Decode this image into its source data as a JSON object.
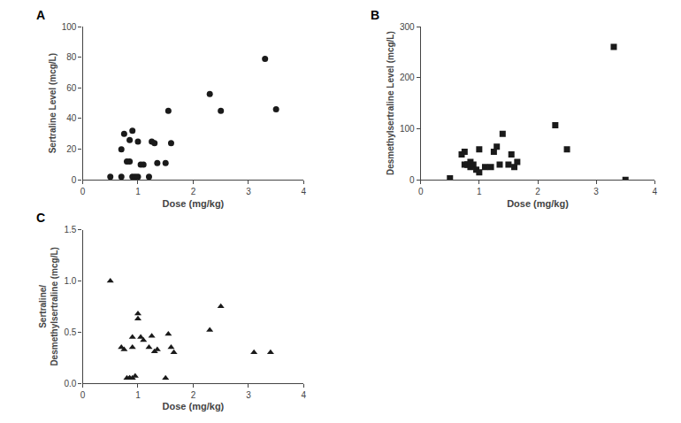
{
  "chart_data": [
    {
      "type": "scatter",
      "title": "A",
      "xlabel": "Dose (mg/kg)",
      "ylabel": "Sertraline Level (mcg/L)",
      "xlim": [
        0,
        4
      ],
      "ylim": [
        0,
        100
      ],
      "xticks": [
        0,
        1,
        2,
        3,
        4
      ],
      "yticks": [
        0,
        20,
        40,
        60,
        80,
        100
      ],
      "marker": "circle",
      "color": "#1a1a1a",
      "grid": false,
      "x": [
        0.5,
        0.7,
        0.7,
        0.75,
        0.8,
        0.85,
        0.85,
        0.9,
        0.9,
        0.95,
        1.0,
        1.0,
        1.05,
        1.1,
        1.2,
        1.25,
        1.3,
        1.35,
        1.5,
        1.55,
        1.6,
        2.3,
        2.5,
        3.3,
        3.5
      ],
      "values": [
        2,
        2,
        20,
        30,
        12,
        12,
        26,
        32,
        2,
        2,
        25,
        2,
        10,
        10,
        2,
        25,
        24,
        11,
        11,
        45,
        24,
        56,
        45,
        79,
        46
      ]
    },
    {
      "type": "scatter",
      "title": "B",
      "xlabel": "Dose (mg/kg)",
      "ylabel": "Desmethylsertraline Level (mcg/L)",
      "xlim": [
        0,
        4
      ],
      "ylim": [
        0,
        300
      ],
      "xticks": [
        0,
        1,
        2,
        3,
        4
      ],
      "yticks": [
        0,
        100,
        200,
        300
      ],
      "marker": "square",
      "color": "#1a1a1a",
      "grid": false,
      "x": [
        0.5,
        0.7,
        0.75,
        0.75,
        0.8,
        0.8,
        0.85,
        0.85,
        0.9,
        0.95,
        1.0,
        1.0,
        1.1,
        1.2,
        1.25,
        1.3,
        1.35,
        1.4,
        1.5,
        1.55,
        1.6,
        1.65,
        2.3,
        2.5,
        3.3,
        3.5
      ],
      "values": [
        3,
        50,
        55,
        30,
        30,
        30,
        35,
        25,
        30,
        20,
        15,
        60,
        25,
        25,
        55,
        65,
        30,
        90,
        30,
        50,
        25,
        35,
        107,
        60,
        260,
        0
      ]
    },
    {
      "type": "scatter",
      "title": "C",
      "xlabel": "Dose (mg/kg)",
      "ylabel": "Sertraline/\nDesmethylsertraline (mcg/L)",
      "xlim": [
        0,
        4
      ],
      "ylim": [
        0,
        1.5
      ],
      "xticks": [
        0,
        1,
        2,
        3,
        4
      ],
      "yticks": [
        {
          "value": 0,
          "label": "0.0"
        },
        0.5,
        {
          "value": 1,
          "label": "1.0"
        },
        1.5
      ],
      "marker": "triangle",
      "color": "#1a1a1a",
      "grid": false,
      "x": [
        0.5,
        0.7,
        0.75,
        0.8,
        0.85,
        0.85,
        0.9,
        0.9,
        0.9,
        0.95,
        1.0,
        1.0,
        1.05,
        1.1,
        1.2,
        1.25,
        1.3,
        1.35,
        1.5,
        1.55,
        1.6,
        1.65,
        2.3,
        2.5,
        3.1,
        3.4
      ],
      "values": [
        1.0,
        0.35,
        0.33,
        0.05,
        0.05,
        0.05,
        0.35,
        0.45,
        0.05,
        0.07,
        0.63,
        0.68,
        0.45,
        0.42,
        0.35,
        0.46,
        0.31,
        0.33,
        0.05,
        0.48,
        0.35,
        0.3,
        0.52,
        0.75,
        0.3,
        0.3
      ]
    }
  ]
}
